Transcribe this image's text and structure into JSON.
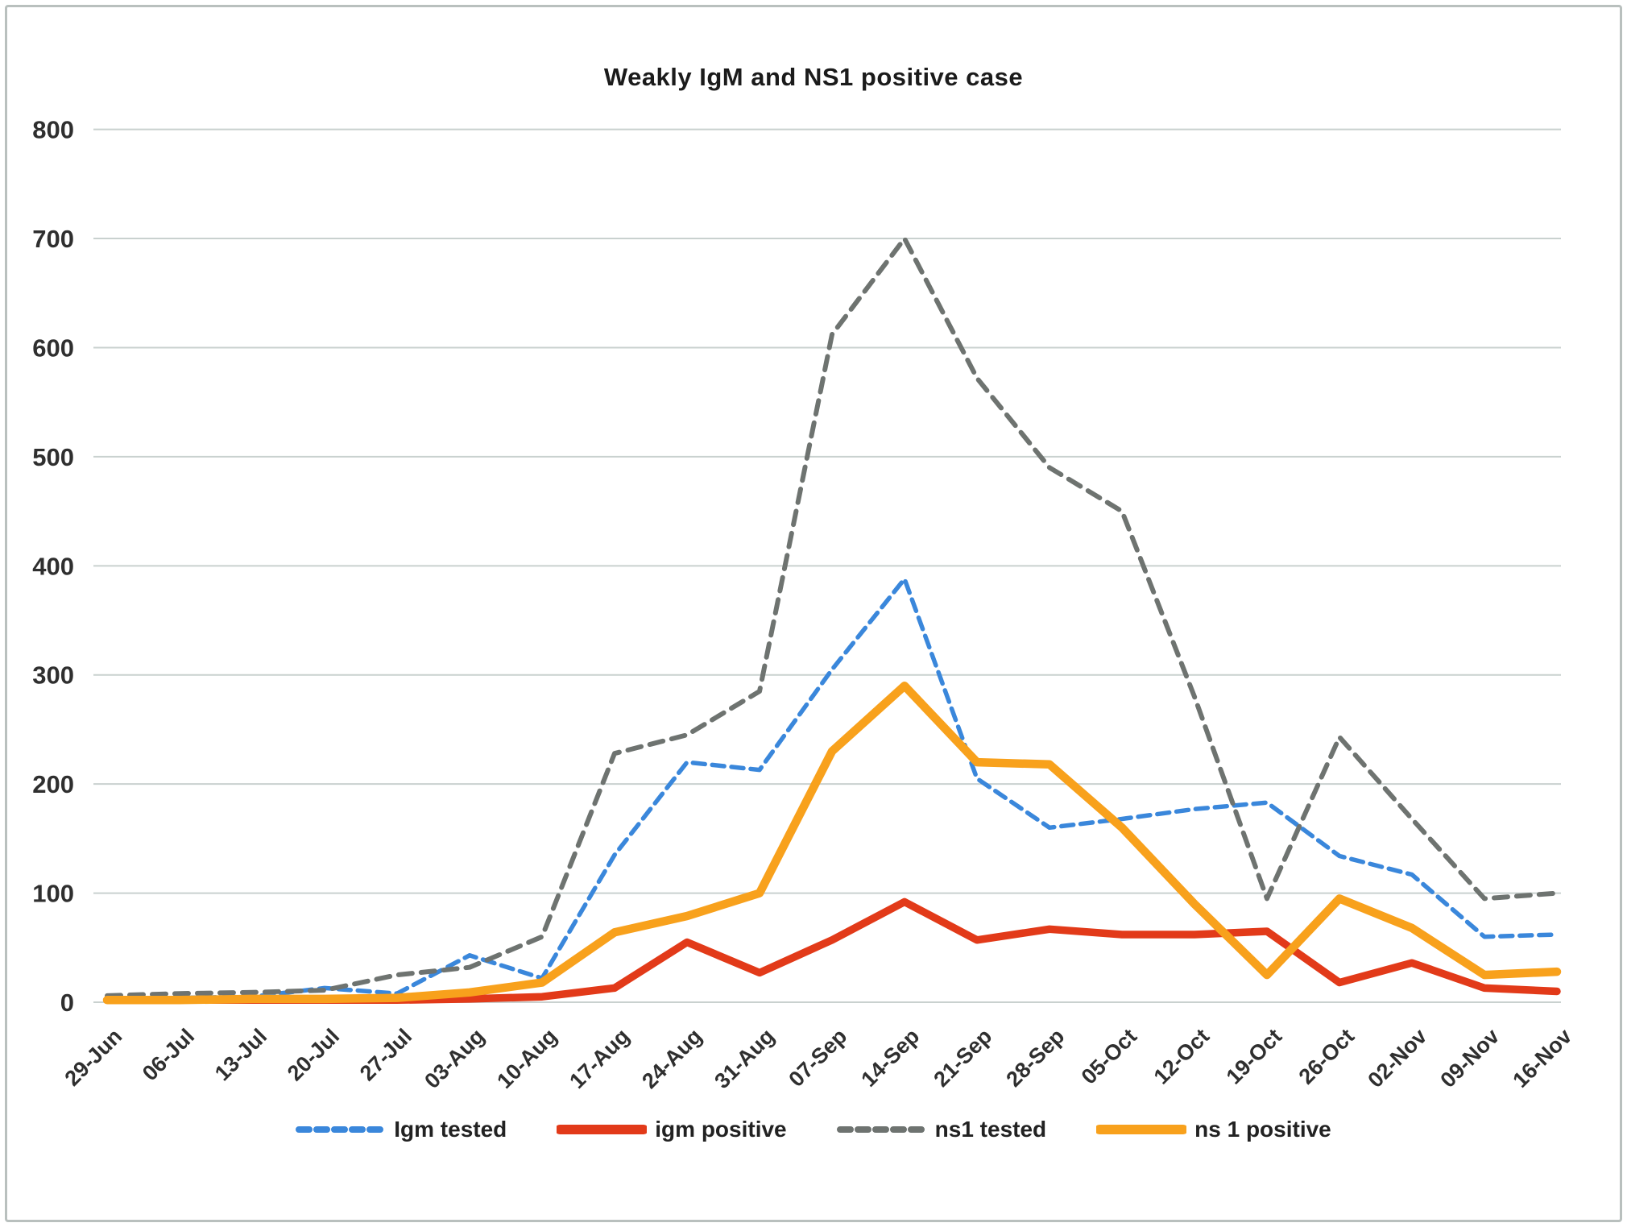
{
  "chart_data": {
    "type": "line",
    "title": "Weakly IgM and NS1 positive case",
    "xlabel": "",
    "ylabel": "",
    "ylim": [
      0,
      800
    ],
    "ytick_step": 100,
    "grid": true,
    "legend_position": "bottom",
    "categories": [
      "29-Jun",
      "06-Jul",
      "13-Jul",
      "20-Jul",
      "27-Jul",
      "03-Aug",
      "10-Aug",
      "17-Aug",
      "24-Aug",
      "31-Aug",
      "07-Sep",
      "14-Sep",
      "21-Sep",
      "28-Sep",
      "05-Oct",
      "12-Oct",
      "19-Oct",
      "26-Oct",
      "02-Nov",
      "09-Nov",
      "16-Nov"
    ],
    "series": [
      {
        "name": "Igm tested",
        "color": "#3a87db",
        "line_style": "dashed",
        "values": [
          3,
          4,
          5,
          13,
          8,
          43,
          22,
          135,
          220,
          213,
          305,
          388,
          205,
          160,
          168,
          177,
          183,
          134,
          117,
          60,
          62
        ]
      },
      {
        "name": "igm positive",
        "color": "#e23a19",
        "line_style": "solid",
        "values": [
          2,
          2,
          2,
          2,
          2,
          3,
          5,
          13,
          55,
          27,
          57,
          92,
          57,
          67,
          62,
          62,
          65,
          18,
          36,
          13,
          10
        ]
      },
      {
        "name": "ns1 tested",
        "color": "#6e7370",
        "line_style": "dashed",
        "values": [
          6,
          8,
          9,
          11,
          25,
          32,
          60,
          228,
          245,
          285,
          612,
          700,
          572,
          490,
          450,
          280,
          95,
          243,
          168,
          95,
          100
        ]
      },
      {
        "name": "ns 1 positive",
        "color": "#f8a11c",
        "line_style": "solid",
        "values": [
          2,
          2,
          3,
          3,
          4,
          9,
          18,
          64,
          79,
          100,
          230,
          290,
          220,
          218,
          160,
          90,
          25,
          95,
          68,
          25,
          28
        ]
      }
    ],
    "colors": {
      "gridline": "#c9d1cf",
      "title_text": "#1b1b1b",
      "axis_text": "#2f2f2f"
    }
  }
}
